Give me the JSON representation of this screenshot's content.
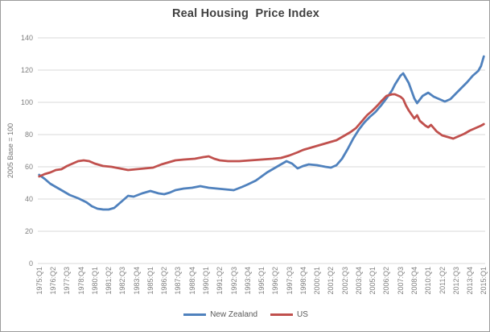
{
  "colors": {
    "new_zealand_line": "#4F81BD",
    "us_line": "#C0504D",
    "gridline": "#D9D9D9",
    "axis_text": "#7F7F7F",
    "title_text": "#404040",
    "legend_text": "#595959"
  },
  "chart_data": {
    "type": "line",
    "title": "Real Housing  Price Index",
    "ylabel": "2005 Base = 100",
    "xlabel": "",
    "ylim": [
      0,
      140
    ],
    "ytick_step": 20,
    "yticks": [
      0,
      20,
      40,
      60,
      80,
      100,
      120,
      140
    ],
    "grid": "horizontal gridlines on, light gray",
    "legend_position": "bottom center",
    "x_axis_note": "quarterly categories from 1975:Q1 to 2015:Q1, tick label every 5 quarters, labels rotated 90° reading bottom-to-top",
    "xtick_labels": [
      "1975:Q1",
      "1976:Q2",
      "1977:Q3",
      "1978:Q4",
      "1980:Q1",
      "1981:Q2",
      "1982:Q3",
      "1983:Q4",
      "1985:Q1",
      "1986:Q2",
      "1987:Q3",
      "1988:Q4",
      "1990:Q1",
      "1991:Q2",
      "1992:Q3",
      "1993:Q4",
      "1995:Q1",
      "1996:Q2",
      "1997:Q3",
      "1998:Q4",
      "2000:Q1",
      "2001:Q2",
      "2002:Q3",
      "2003:Q4",
      "2005:Q1",
      "2006:Q2",
      "2007:Q3",
      "2008:Q4",
      "2010:Q1",
      "2011:Q2",
      "2012:Q3",
      "2013:Q4",
      "2015:Q1"
    ],
    "series": [
      {
        "name": "New Zealand",
        "color": "#4F81BD",
        "points": [
          [
            "1975:Q1",
            55
          ],
          [
            "1975:Q3",
            52.5
          ],
          [
            "1976:Q1",
            49.5
          ],
          [
            "1976:Q3",
            47.5
          ],
          [
            "1977:Q1",
            45.5
          ],
          [
            "1977:Q4",
            42.5
          ],
          [
            "1978:Q3",
            40.5
          ],
          [
            "1979:Q2",
            38
          ],
          [
            "1979:Q4",
            35.5
          ],
          [
            "1980:Q2",
            34
          ],
          [
            "1980:Q4",
            33.5
          ],
          [
            "1981:Q2",
            33.5
          ],
          [
            "1981:Q4",
            34.5
          ],
          [
            "1982:Q2",
            37.5
          ],
          [
            "1982:Q4",
            40.5
          ],
          [
            "1983:Q1",
            42
          ],
          [
            "1983:Q3",
            41.5
          ],
          [
            "1984:Q2",
            43.5
          ],
          [
            "1985:Q1",
            45
          ],
          [
            "1985:Q4",
            43.5
          ],
          [
            "1986:Q2",
            43
          ],
          [
            "1986:Q4",
            44
          ],
          [
            "1987:Q2",
            45.5
          ],
          [
            "1988:Q1",
            46.5
          ],
          [
            "1988:Q4",
            47
          ],
          [
            "1989:Q3",
            48
          ],
          [
            "1990:Q2",
            47
          ],
          [
            "1991:Q1",
            46.5
          ],
          [
            "1991:Q4",
            46
          ],
          [
            "1992:Q3",
            45.5
          ],
          [
            "1993:Q2",
            47.5
          ],
          [
            "1993:Q4",
            49
          ],
          [
            "1994:Q3",
            51.5
          ],
          [
            "1995:Q1",
            54
          ],
          [
            "1995:Q3",
            56.5
          ],
          [
            "1996:Q1",
            58.5
          ],
          [
            "1996:Q3",
            60.5
          ],
          [
            "1997:Q2",
            63.5
          ],
          [
            "1997:Q4",
            62
          ],
          [
            "1998:Q2",
            59
          ],
          [
            "1998:Q4",
            60.5
          ],
          [
            "1999:Q2",
            61.5
          ],
          [
            "2000:Q1",
            61
          ],
          [
            "2000:Q4",
            60
          ],
          [
            "2001:Q2",
            59.5
          ],
          [
            "2001:Q4",
            61
          ],
          [
            "2002:Q2",
            65
          ],
          [
            "2002:Q4",
            71
          ],
          [
            "2003:Q2",
            77.5
          ],
          [
            "2003:Q4",
            83
          ],
          [
            "2004:Q2",
            87.5
          ],
          [
            "2004:Q4",
            91
          ],
          [
            "2005:Q2",
            94
          ],
          [
            "2005:Q4",
            98
          ],
          [
            "2006:Q2",
            102.5
          ],
          [
            "2006:Q4",
            107.5
          ],
          [
            "2007:Q1",
            111
          ],
          [
            "2007:Q3",
            116.5
          ],
          [
            "2007:Q4",
            118
          ],
          [
            "2008:Q2",
            112
          ],
          [
            "2008:Q4",
            102.5
          ],
          [
            "2009:Q1",
            99.5
          ],
          [
            "2009:Q3",
            104
          ],
          [
            "2010:Q1",
            106
          ],
          [
            "2010:Q3",
            103.5
          ],
          [
            "2011:Q1",
            102
          ],
          [
            "2011:Q3",
            100.5
          ],
          [
            "2012:Q1",
            102
          ],
          [
            "2012:Q3",
            105.5
          ],
          [
            "2013:Q1",
            109
          ],
          [
            "2013:Q3",
            112.5
          ],
          [
            "2014:Q1",
            116.5
          ],
          [
            "2014:Q3",
            119.5
          ],
          [
            "2014:Q4",
            122.5
          ],
          [
            "2015:Q1",
            128.5
          ]
        ]
      },
      {
        "name": "US",
        "color": "#C0504D",
        "points": [
          [
            "1975:Q1",
            54
          ],
          [
            "1975:Q3",
            55.5
          ],
          [
            "1976:Q1",
            56.5
          ],
          [
            "1976:Q3",
            58
          ],
          [
            "1977:Q1",
            58.5
          ],
          [
            "1977:Q3",
            60.5
          ],
          [
            "1978:Q1",
            62
          ],
          [
            "1978:Q3",
            63.5
          ],
          [
            "1979:Q1",
            64
          ],
          [
            "1979:Q3",
            63.5
          ],
          [
            "1980:Q1",
            62
          ],
          [
            "1980:Q4",
            60.5
          ],
          [
            "1981:Q3",
            60
          ],
          [
            "1982:Q2",
            59
          ],
          [
            "1983:Q1",
            58
          ],
          [
            "1983:Q4",
            58.5
          ],
          [
            "1984:Q3",
            59
          ],
          [
            "1985:Q2",
            59.5
          ],
          [
            "1986:Q1",
            61.5
          ],
          [
            "1986:Q4",
            63
          ],
          [
            "1987:Q2",
            64
          ],
          [
            "1988:Q1",
            64.5
          ],
          [
            "1989:Q1",
            65
          ],
          [
            "1989:Q4",
            66
          ],
          [
            "1990:Q2",
            66.5
          ],
          [
            "1990:Q4",
            65
          ],
          [
            "1991:Q2",
            64
          ],
          [
            "1992:Q1",
            63.5
          ],
          [
            "1993:Q1",
            63.5
          ],
          [
            "1994:Q1",
            64
          ],
          [
            "1995:Q1",
            64.5
          ],
          [
            "1996:Q1",
            65
          ],
          [
            "1996:Q4",
            65.5
          ],
          [
            "1997:Q3",
            67
          ],
          [
            "1998:Q2",
            69
          ],
          [
            "1998:Q4",
            70.5
          ],
          [
            "1999:Q3",
            72
          ],
          [
            "2000:Q2",
            73.5
          ],
          [
            "2001:Q1",
            75
          ],
          [
            "2001:Q4",
            76.5
          ],
          [
            "2002:Q3",
            79.5
          ],
          [
            "2003:Q1",
            81.5
          ],
          [
            "2003:Q3",
            84
          ],
          [
            "2004:Q1",
            88
          ],
          [
            "2004:Q3",
            92
          ],
          [
            "2005:Q1",
            95
          ],
          [
            "2005:Q3",
            98.5
          ],
          [
            "2005:Q4",
            100.5
          ],
          [
            "2006:Q2",
            104
          ],
          [
            "2006:Q4",
            105
          ],
          [
            "2007:Q1",
            105
          ],
          [
            "2007:Q3",
            103.5
          ],
          [
            "2007:Q4",
            102
          ],
          [
            "2008:Q1",
            98
          ],
          [
            "2008:Q2",
            95
          ],
          [
            "2008:Q4",
            90
          ],
          [
            "2009:Q1",
            92
          ],
          [
            "2009:Q2",
            88.5
          ],
          [
            "2009:Q4",
            85.5
          ],
          [
            "2010:Q1",
            84.5
          ],
          [
            "2010:Q2",
            86
          ],
          [
            "2010:Q4",
            82
          ],
          [
            "2011:Q2",
            79.5
          ],
          [
            "2011:Q4",
            78.5
          ],
          [
            "2012:Q2",
            77.5
          ],
          [
            "2012:Q4",
            79
          ],
          [
            "2013:Q2",
            80.5
          ],
          [
            "2013:Q4",
            82.5
          ],
          [
            "2014:Q2",
            84
          ],
          [
            "2014:Q4",
            85.5
          ],
          [
            "2015:Q1",
            86.5
          ]
        ]
      }
    ]
  }
}
